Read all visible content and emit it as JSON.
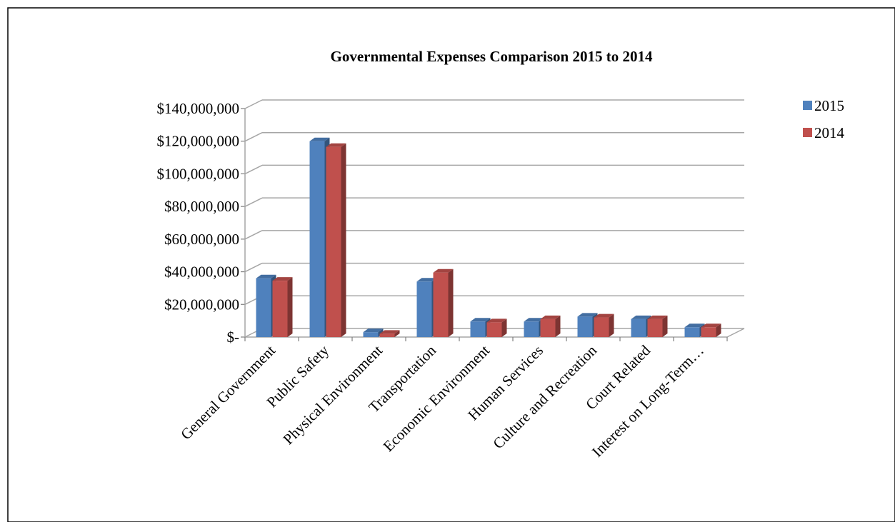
{
  "chart_data": {
    "type": "bar",
    "title": "Governmental Expenses Comparison 2015 to 2014",
    "categories": [
      "General Government",
      "Public Safety",
      "Physical Environment",
      "Transportation",
      "Economic Environment",
      "Human Services",
      "Culture and Recreation",
      "Court Related",
      "Interest on Long-Term…"
    ],
    "series": [
      {
        "name": "2015",
        "color": "#4F81BD",
        "values": [
          36000000,
          120000000,
          3000000,
          34000000,
          9500000,
          9500000,
          12500000,
          11000000,
          6000000
        ]
      },
      {
        "name": "2014",
        "color": "#C0504D",
        "values": [
          34500000,
          116500000,
          2000000,
          39500000,
          9000000,
          11000000,
          12000000,
          11000000,
          6000000
        ]
      }
    ],
    "ylim": [
      0,
      140000000
    ],
    "y_ticks": [
      {
        "value": 0,
        "label": "$-"
      },
      {
        "value": 20000000,
        "label": "$20,000,000"
      },
      {
        "value": 40000000,
        "label": "$40,000,000"
      },
      {
        "value": 60000000,
        "label": "$60,000,000"
      },
      {
        "value": 80000000,
        "label": "$80,000,000"
      },
      {
        "value": 100000000,
        "label": "$100,000,000"
      },
      {
        "value": 120000000,
        "label": "$120,000,000"
      },
      {
        "value": 140000000,
        "label": "$140,000,000"
      }
    ],
    "xlabel": "",
    "ylabel": "",
    "grid": true,
    "legend_position": "top-right",
    "gridline_color": "#A6A6A6"
  }
}
